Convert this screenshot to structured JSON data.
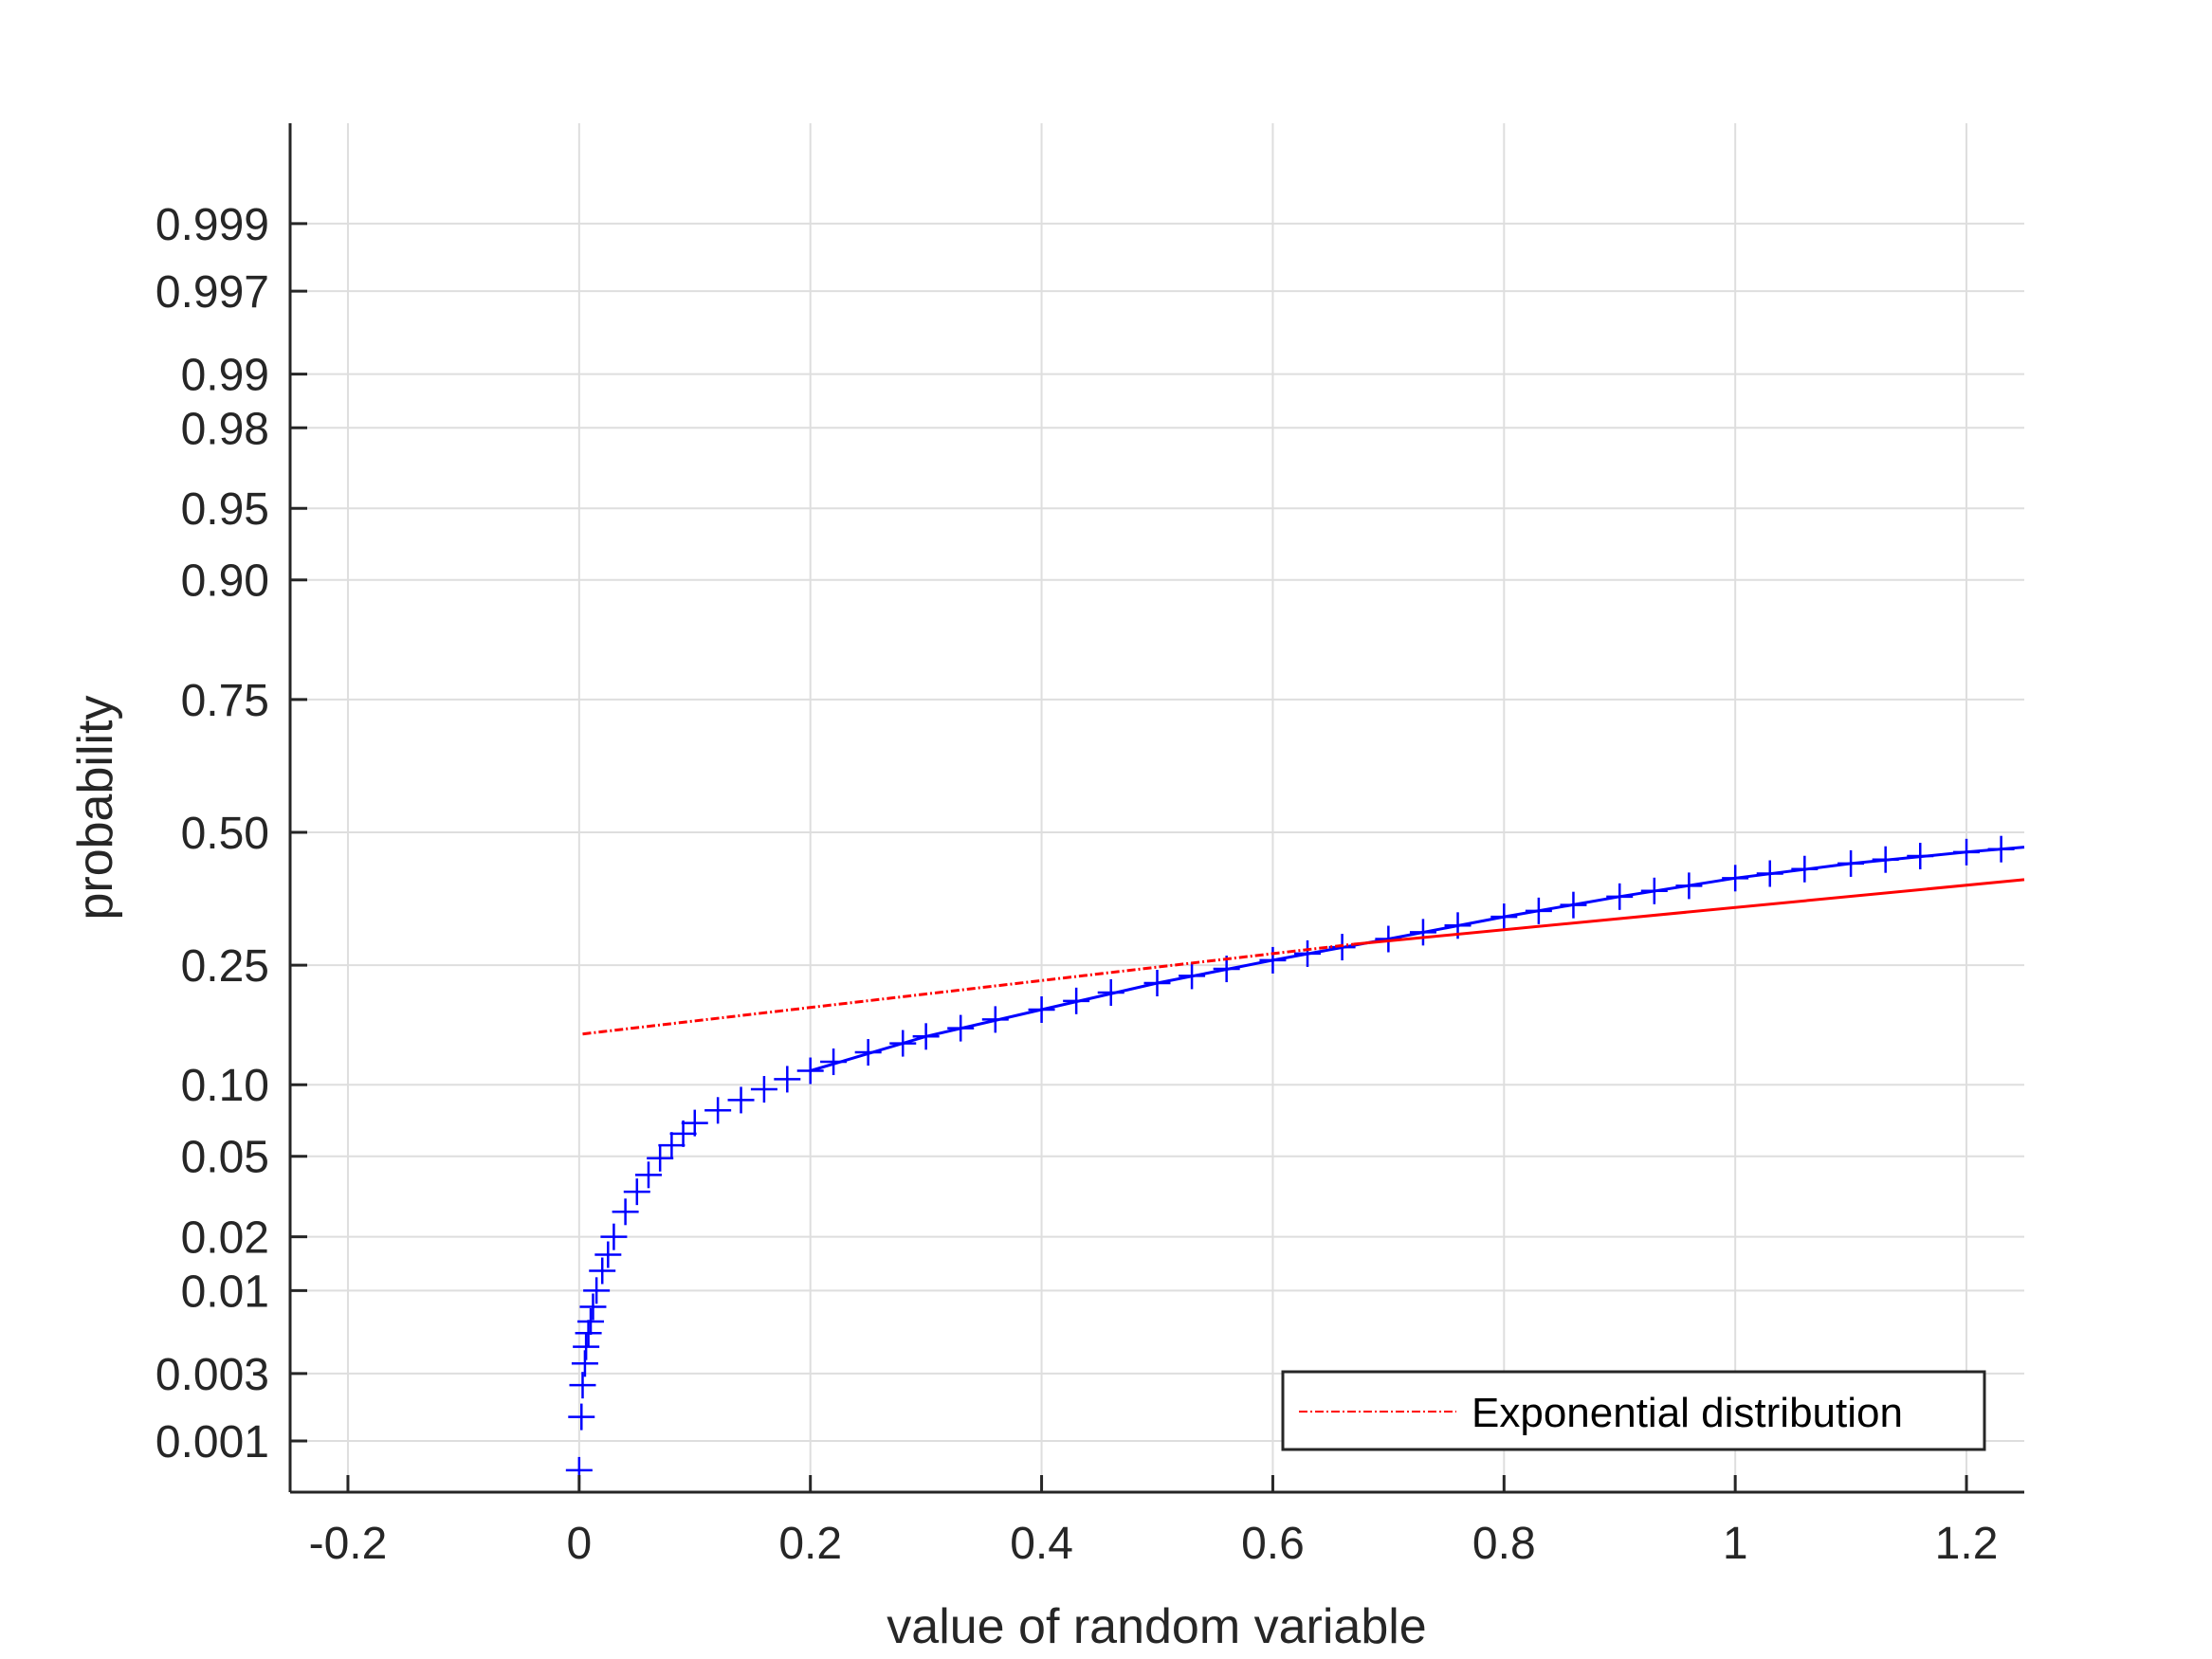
{
  "chart_data": {
    "type": "scatter",
    "title": "",
    "xlabel": "value of random variable",
    "ylabel": "probability",
    "xlim": [
      -0.25,
      1.25
    ],
    "y_scale": "probability (normal quantile)",
    "x_ticks": [
      -0.2,
      0,
      0.2,
      0.4,
      0.6,
      0.8,
      1,
      1.2
    ],
    "x_tick_labels": [
      "-0.2",
      "0",
      "0.2",
      "0.4",
      "0.6",
      "0.8",
      "1",
      "1.2"
    ],
    "y_ticks": [
      0.001,
      0.003,
      0.01,
      0.02,
      0.05,
      0.1,
      0.25,
      0.5,
      0.75,
      0.9,
      0.95,
      0.98,
      0.99,
      0.997,
      0.999
    ],
    "y_tick_labels": [
      "0.001",
      "0.003",
      "0.01",
      "0.02",
      "0.05",
      "0.10",
      "0.25",
      "0.50",
      "0.75",
      "0.90",
      "0.95",
      "0.98",
      "0.99",
      "0.997",
      "0.999"
    ],
    "grid": true,
    "legend_position": "bottom-right",
    "series": [
      {
        "name": "",
        "kind": "markers",
        "marker": "plus",
        "color": "#0000ff",
        "x": [
          0.0,
          0.002,
          0.003,
          0.005,
          0.006,
          0.008,
          0.01,
          0.012,
          0.015,
          0.02,
          0.025,
          0.03,
          0.04,
          0.05,
          0.06,
          0.07,
          0.08,
          0.09,
          0.1,
          0.12,
          0.14,
          0.16,
          0.18,
          0.2,
          0.22,
          0.25,
          0.28,
          0.3,
          0.33,
          0.36,
          0.4,
          0.43,
          0.46,
          0.5,
          0.53,
          0.56,
          0.6,
          0.63,
          0.66,
          0.7,
          0.73,
          0.76,
          0.8,
          0.83,
          0.86,
          0.9,
          0.93,
          0.96,
          1.0,
          1.03,
          1.06,
          1.1,
          1.13,
          1.16,
          1.2,
          1.23
        ],
        "y": [
          0.0006,
          0.0015,
          0.0025,
          0.0035,
          0.0045,
          0.0055,
          0.0065,
          0.008,
          0.01,
          0.013,
          0.016,
          0.02,
          0.027,
          0.034,
          0.041,
          0.049,
          0.056,
          0.063,
          0.07,
          0.079,
          0.087,
          0.096,
          0.105,
          0.113,
          0.122,
          0.132,
          0.142,
          0.15,
          0.16,
          0.171,
          0.184,
          0.196,
          0.208,
          0.222,
          0.233,
          0.244,
          0.258,
          0.269,
          0.28,
          0.294,
          0.306,
          0.318,
          0.334,
          0.345,
          0.356,
          0.372,
          0.383,
          0.393,
          0.408,
          0.417,
          0.426,
          0.437,
          0.445,
          0.452,
          0.46,
          0.466
        ]
      },
      {
        "name": "",
        "kind": "line",
        "style": "solid",
        "color": "#0000ff",
        "x": [
          0.2,
          0.3,
          0.4,
          0.5,
          0.6,
          0.7,
          0.8,
          0.9,
          1.0,
          1.1,
          1.2,
          1.25
        ],
        "y": [
          0.113,
          0.15,
          0.184,
          0.222,
          0.258,
          0.294,
          0.334,
          0.372,
          0.408,
          0.437,
          0.46,
          0.47
        ]
      },
      {
        "name": "",
        "kind": "line",
        "style": "solid",
        "color": "#ff0000",
        "x": [
          0.67,
          1.25
        ],
        "y": [
          0.285,
          0.405
        ]
      },
      {
        "name": "Exponential distribution",
        "kind": "line",
        "style": "dash-dot",
        "color": "#ff0000",
        "x": [
          0.003,
          0.67
        ],
        "y": [
          0.153,
          0.285
        ]
      }
    ]
  }
}
